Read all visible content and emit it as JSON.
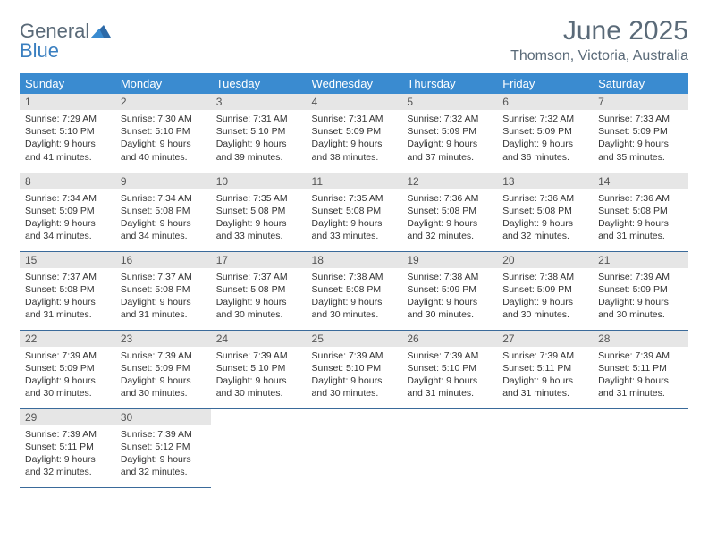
{
  "brand": {
    "word1": "General",
    "word2": "Blue"
  },
  "title": "June 2025",
  "location": "Thomson, Victoria, Australia",
  "header_bg": "#3a8bd0",
  "header_fg": "#ffffff",
  "rule_color": "#3a6a9a",
  "daynum_bg": "#e6e6e6",
  "text_color": "#333333",
  "muted_color": "#5a6a78",
  "accent_color": "#3a7fc0",
  "weekdays": [
    "Sunday",
    "Monday",
    "Tuesday",
    "Wednesday",
    "Thursday",
    "Friday",
    "Saturday"
  ],
  "weeks": [
    [
      {
        "n": "1",
        "sr": "Sunrise: 7:29 AM",
        "ss": "Sunset: 5:10 PM",
        "d1": "Daylight: 9 hours",
        "d2": "and 41 minutes."
      },
      {
        "n": "2",
        "sr": "Sunrise: 7:30 AM",
        "ss": "Sunset: 5:10 PM",
        "d1": "Daylight: 9 hours",
        "d2": "and 40 minutes."
      },
      {
        "n": "3",
        "sr": "Sunrise: 7:31 AM",
        "ss": "Sunset: 5:10 PM",
        "d1": "Daylight: 9 hours",
        "d2": "and 39 minutes."
      },
      {
        "n": "4",
        "sr": "Sunrise: 7:31 AM",
        "ss": "Sunset: 5:09 PM",
        "d1": "Daylight: 9 hours",
        "d2": "and 38 minutes."
      },
      {
        "n": "5",
        "sr": "Sunrise: 7:32 AM",
        "ss": "Sunset: 5:09 PM",
        "d1": "Daylight: 9 hours",
        "d2": "and 37 minutes."
      },
      {
        "n": "6",
        "sr": "Sunrise: 7:32 AM",
        "ss": "Sunset: 5:09 PM",
        "d1": "Daylight: 9 hours",
        "d2": "and 36 minutes."
      },
      {
        "n": "7",
        "sr": "Sunrise: 7:33 AM",
        "ss": "Sunset: 5:09 PM",
        "d1": "Daylight: 9 hours",
        "d2": "and 35 minutes."
      }
    ],
    [
      {
        "n": "8",
        "sr": "Sunrise: 7:34 AM",
        "ss": "Sunset: 5:09 PM",
        "d1": "Daylight: 9 hours",
        "d2": "and 34 minutes."
      },
      {
        "n": "9",
        "sr": "Sunrise: 7:34 AM",
        "ss": "Sunset: 5:08 PM",
        "d1": "Daylight: 9 hours",
        "d2": "and 34 minutes."
      },
      {
        "n": "10",
        "sr": "Sunrise: 7:35 AM",
        "ss": "Sunset: 5:08 PM",
        "d1": "Daylight: 9 hours",
        "d2": "and 33 minutes."
      },
      {
        "n": "11",
        "sr": "Sunrise: 7:35 AM",
        "ss": "Sunset: 5:08 PM",
        "d1": "Daylight: 9 hours",
        "d2": "and 33 minutes."
      },
      {
        "n": "12",
        "sr": "Sunrise: 7:36 AM",
        "ss": "Sunset: 5:08 PM",
        "d1": "Daylight: 9 hours",
        "d2": "and 32 minutes."
      },
      {
        "n": "13",
        "sr": "Sunrise: 7:36 AM",
        "ss": "Sunset: 5:08 PM",
        "d1": "Daylight: 9 hours",
        "d2": "and 32 minutes."
      },
      {
        "n": "14",
        "sr": "Sunrise: 7:36 AM",
        "ss": "Sunset: 5:08 PM",
        "d1": "Daylight: 9 hours",
        "d2": "and 31 minutes."
      }
    ],
    [
      {
        "n": "15",
        "sr": "Sunrise: 7:37 AM",
        "ss": "Sunset: 5:08 PM",
        "d1": "Daylight: 9 hours",
        "d2": "and 31 minutes."
      },
      {
        "n": "16",
        "sr": "Sunrise: 7:37 AM",
        "ss": "Sunset: 5:08 PM",
        "d1": "Daylight: 9 hours",
        "d2": "and 31 minutes."
      },
      {
        "n": "17",
        "sr": "Sunrise: 7:37 AM",
        "ss": "Sunset: 5:08 PM",
        "d1": "Daylight: 9 hours",
        "d2": "and 30 minutes."
      },
      {
        "n": "18",
        "sr": "Sunrise: 7:38 AM",
        "ss": "Sunset: 5:08 PM",
        "d1": "Daylight: 9 hours",
        "d2": "and 30 minutes."
      },
      {
        "n": "19",
        "sr": "Sunrise: 7:38 AM",
        "ss": "Sunset: 5:09 PM",
        "d1": "Daylight: 9 hours",
        "d2": "and 30 minutes."
      },
      {
        "n": "20",
        "sr": "Sunrise: 7:38 AM",
        "ss": "Sunset: 5:09 PM",
        "d1": "Daylight: 9 hours",
        "d2": "and 30 minutes."
      },
      {
        "n": "21",
        "sr": "Sunrise: 7:39 AM",
        "ss": "Sunset: 5:09 PM",
        "d1": "Daylight: 9 hours",
        "d2": "and 30 minutes."
      }
    ],
    [
      {
        "n": "22",
        "sr": "Sunrise: 7:39 AM",
        "ss": "Sunset: 5:09 PM",
        "d1": "Daylight: 9 hours",
        "d2": "and 30 minutes."
      },
      {
        "n": "23",
        "sr": "Sunrise: 7:39 AM",
        "ss": "Sunset: 5:09 PM",
        "d1": "Daylight: 9 hours",
        "d2": "and 30 minutes."
      },
      {
        "n": "24",
        "sr": "Sunrise: 7:39 AM",
        "ss": "Sunset: 5:10 PM",
        "d1": "Daylight: 9 hours",
        "d2": "and 30 minutes."
      },
      {
        "n": "25",
        "sr": "Sunrise: 7:39 AM",
        "ss": "Sunset: 5:10 PM",
        "d1": "Daylight: 9 hours",
        "d2": "and 30 minutes."
      },
      {
        "n": "26",
        "sr": "Sunrise: 7:39 AM",
        "ss": "Sunset: 5:10 PM",
        "d1": "Daylight: 9 hours",
        "d2": "and 31 minutes."
      },
      {
        "n": "27",
        "sr": "Sunrise: 7:39 AM",
        "ss": "Sunset: 5:11 PM",
        "d1": "Daylight: 9 hours",
        "d2": "and 31 minutes."
      },
      {
        "n": "28",
        "sr": "Sunrise: 7:39 AM",
        "ss": "Sunset: 5:11 PM",
        "d1": "Daylight: 9 hours",
        "d2": "and 31 minutes."
      }
    ],
    [
      {
        "n": "29",
        "sr": "Sunrise: 7:39 AM",
        "ss": "Sunset: 5:11 PM",
        "d1": "Daylight: 9 hours",
        "d2": "and 32 minutes."
      },
      {
        "n": "30",
        "sr": "Sunrise: 7:39 AM",
        "ss": "Sunset: 5:12 PM",
        "d1": "Daylight: 9 hours",
        "d2": "and 32 minutes."
      },
      null,
      null,
      null,
      null,
      null
    ]
  ]
}
